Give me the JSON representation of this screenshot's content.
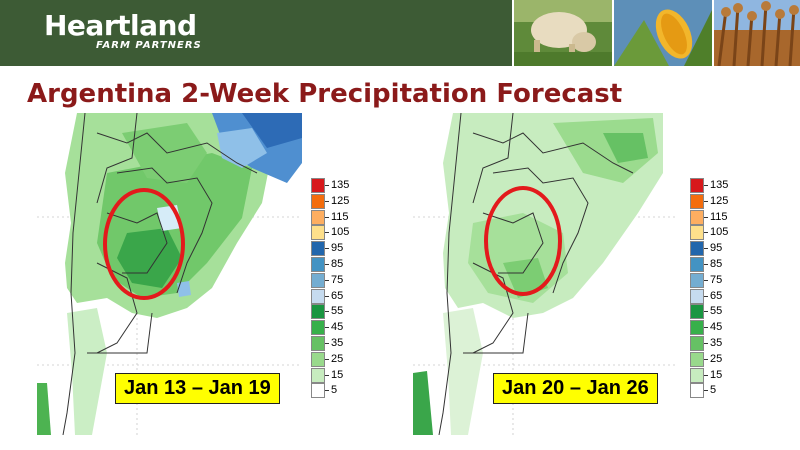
{
  "header": {
    "brand": "Heartland",
    "brand_sub": "FARM PARTNERS",
    "photos": [
      "cow-photo",
      "corn-photo",
      "wheat-photo"
    ]
  },
  "title": "Argentina 2-Week Precipitation Forecast",
  "maps": [
    {
      "name": "map-week-1",
      "date_range": "Jan 13 – Jan 19"
    },
    {
      "name": "map-week-2",
      "date_range": "Jan 20 – Jan 26"
    }
  ],
  "legend": {
    "values": [
      "135",
      "125",
      "115",
      "105",
      "95",
      "85",
      "75",
      "65",
      "55",
      "45",
      "35",
      "25",
      "15",
      "5"
    ],
    "colors": [
      "#d7191c",
      "#f46d0d",
      "#fdae61",
      "#fee08b",
      "#2166ac",
      "#4393c3",
      "#74add1",
      "#c6dbef",
      "#1a9641",
      "#37b04a",
      "#66c164",
      "#99d98c",
      "#c7ecbf",
      "#ffffff"
    ]
  },
  "colors": {
    "header_bg": "#3d5b35",
    "title": "#8b1a1a",
    "highlight_circle": "#e31a1c",
    "date_label_bg": "#ffff00"
  }
}
